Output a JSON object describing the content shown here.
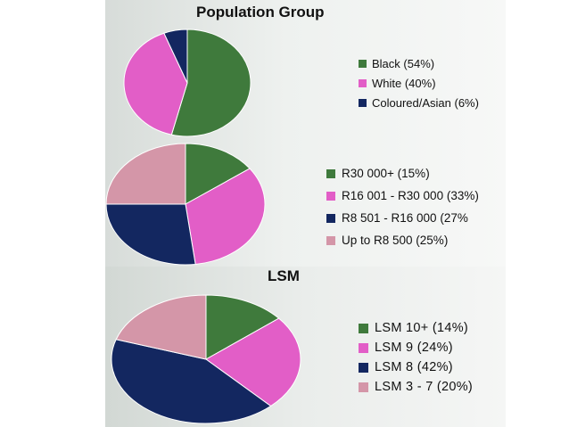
{
  "colors": {
    "green": "#3f7a3c",
    "magenta": "#e25ec7",
    "navy": "#132760",
    "rose": "#d496a8"
  },
  "chart_data": [
    {
      "type": "pie",
      "title": "Population Group",
      "legend_position": "right",
      "slices": [
        {
          "label": "Black (54%)",
          "value": 54,
          "color": "#3f7a3c"
        },
        {
          "label": "White (40%)",
          "value": 40,
          "color": "#e25ec7"
        },
        {
          "label": "Coloured/Asian (6%)",
          "value": 6,
          "color": "#132760"
        }
      ]
    },
    {
      "type": "pie",
      "title": "",
      "legend_position": "right",
      "slices": [
        {
          "label": "R30 000+  (15%)",
          "value": 15,
          "color": "#3f7a3c"
        },
        {
          "label": "R16 001 - R30 000 (33%)",
          "value": 33,
          "color": "#e25ec7"
        },
        {
          "label": "R8 501 - R16 000 (27%",
          "value": 27,
          "color": "#132760"
        },
        {
          "label": "Up to R8 500 (25%)",
          "value": 25,
          "color": "#d496a8"
        }
      ]
    },
    {
      "type": "pie",
      "title": "LSM",
      "legend_position": "right",
      "slices": [
        {
          "label": "LSM 10+ (14%)",
          "value": 14,
          "color": "#3f7a3c"
        },
        {
          "label": "LSM 9 (24%)",
          "value": 24,
          "color": "#e25ec7"
        },
        {
          "label": "LSM 8 (42%)",
          "value": 42,
          "color": "#132760"
        },
        {
          "label": "LSM 3 - 7 (20%)",
          "value": 20,
          "color": "#d496a8"
        }
      ]
    }
  ]
}
